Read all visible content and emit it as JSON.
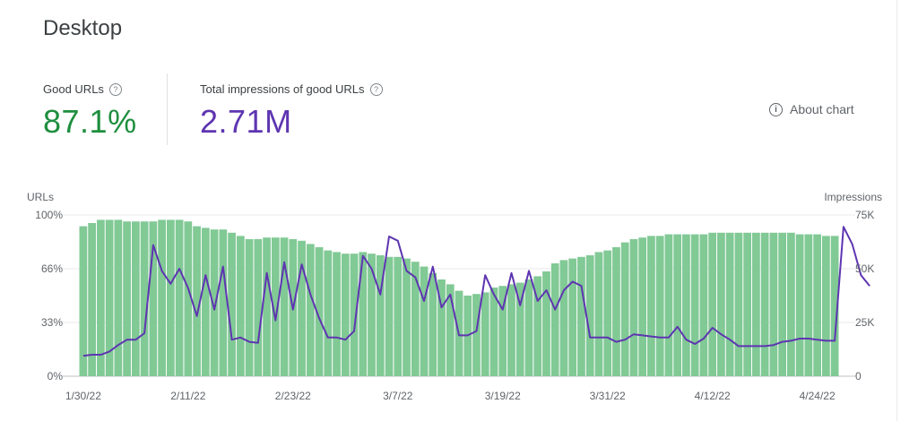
{
  "title": "Desktop",
  "metrics": [
    {
      "label": "Good URLs",
      "value": "87.1%",
      "color": "#1e8e3e"
    },
    {
      "label": "Total impressions of good URLs",
      "value": "2.71M",
      "color": "#5e35b1"
    }
  ],
  "about_label": "About chart",
  "icons": {
    "help": "question-mark-icon",
    "info": "info-icon"
  },
  "colors": {
    "bar": "#81c995",
    "line": "#5e35b1",
    "grid": "#e8eaed",
    "axis_text": "#5f6368"
  },
  "chart_data": {
    "type": "bar",
    "left_axis": {
      "label": "URLs",
      "ticks": [
        "100%",
        "66%",
        "33%",
        "0%"
      ],
      "range": [
        0,
        100
      ]
    },
    "right_axis": {
      "label": "Impressions",
      "ticks": [
        "75K",
        "50K",
        "25K",
        "0"
      ],
      "range": [
        0,
        75000
      ]
    },
    "x_tick_labels": [
      "1/30/22",
      "2/11/22",
      "2/23/22",
      "3/7/22",
      "3/19/22",
      "3/31/22",
      "4/12/22",
      "4/24/22"
    ],
    "grid": true,
    "series": [
      {
        "kind": "bar",
        "axis": "left",
        "values": [
          93,
          95,
          97,
          97,
          97,
          96,
          96,
          96,
          96,
          97,
          97,
          97,
          96,
          93,
          92,
          91,
          91,
          89,
          87,
          85,
          85,
          86,
          86,
          86,
          85,
          84,
          82,
          80,
          78,
          77,
          76,
          76,
          77,
          76,
          75,
          74,
          74,
          73,
          71,
          68,
          64,
          60,
          57,
          53,
          50,
          51,
          52,
          55,
          56,
          57,
          58,
          60,
          62,
          65,
          70,
          72,
          73,
          74,
          75,
          77,
          78,
          80,
          83,
          85,
          86,
          87,
          87,
          88,
          88,
          88,
          88,
          88,
          89,
          89,
          89,
          89,
          89,
          89,
          89,
          89,
          89,
          89,
          88,
          88,
          88,
          87,
          87
        ],
        "start": "1/30/22"
      },
      {
        "kind": "line",
        "axis": "right",
        "values": [
          9500,
          10000,
          10000,
          11500,
          14500,
          17000,
          17000,
          20000,
          61000,
          49000,
          43000,
          50000,
          41000,
          28000,
          47000,
          31000,
          51000,
          17000,
          18000,
          16000,
          15500,
          48000,
          26000,
          53000,
          31000,
          52000,
          38000,
          27000,
          18000,
          18000,
          17000,
          21000,
          56000,
          50000,
          38000,
          65000,
          63000,
          49000,
          46000,
          35000,
          51000,
          32000,
          38000,
          19000,
          19000,
          21000,
          47000,
          38000,
          31000,
          48000,
          33000,
          49000,
          35000,
          40000,
          31000,
          40000,
          44000,
          42000,
          18000,
          18000,
          18000,
          16000,
          17000,
          19500,
          19000,
          18500,
          18000,
          18000,
          23000,
          17000,
          15000,
          17500,
          22500,
          19500,
          17000,
          14000,
          14000,
          14000,
          14000,
          14500,
          16000,
          16500,
          17500,
          17500,
          17000,
          16500,
          16500,
          69500,
          61500,
          47000,
          42000
        ],
        "start": "1/30/22"
      }
    ]
  }
}
